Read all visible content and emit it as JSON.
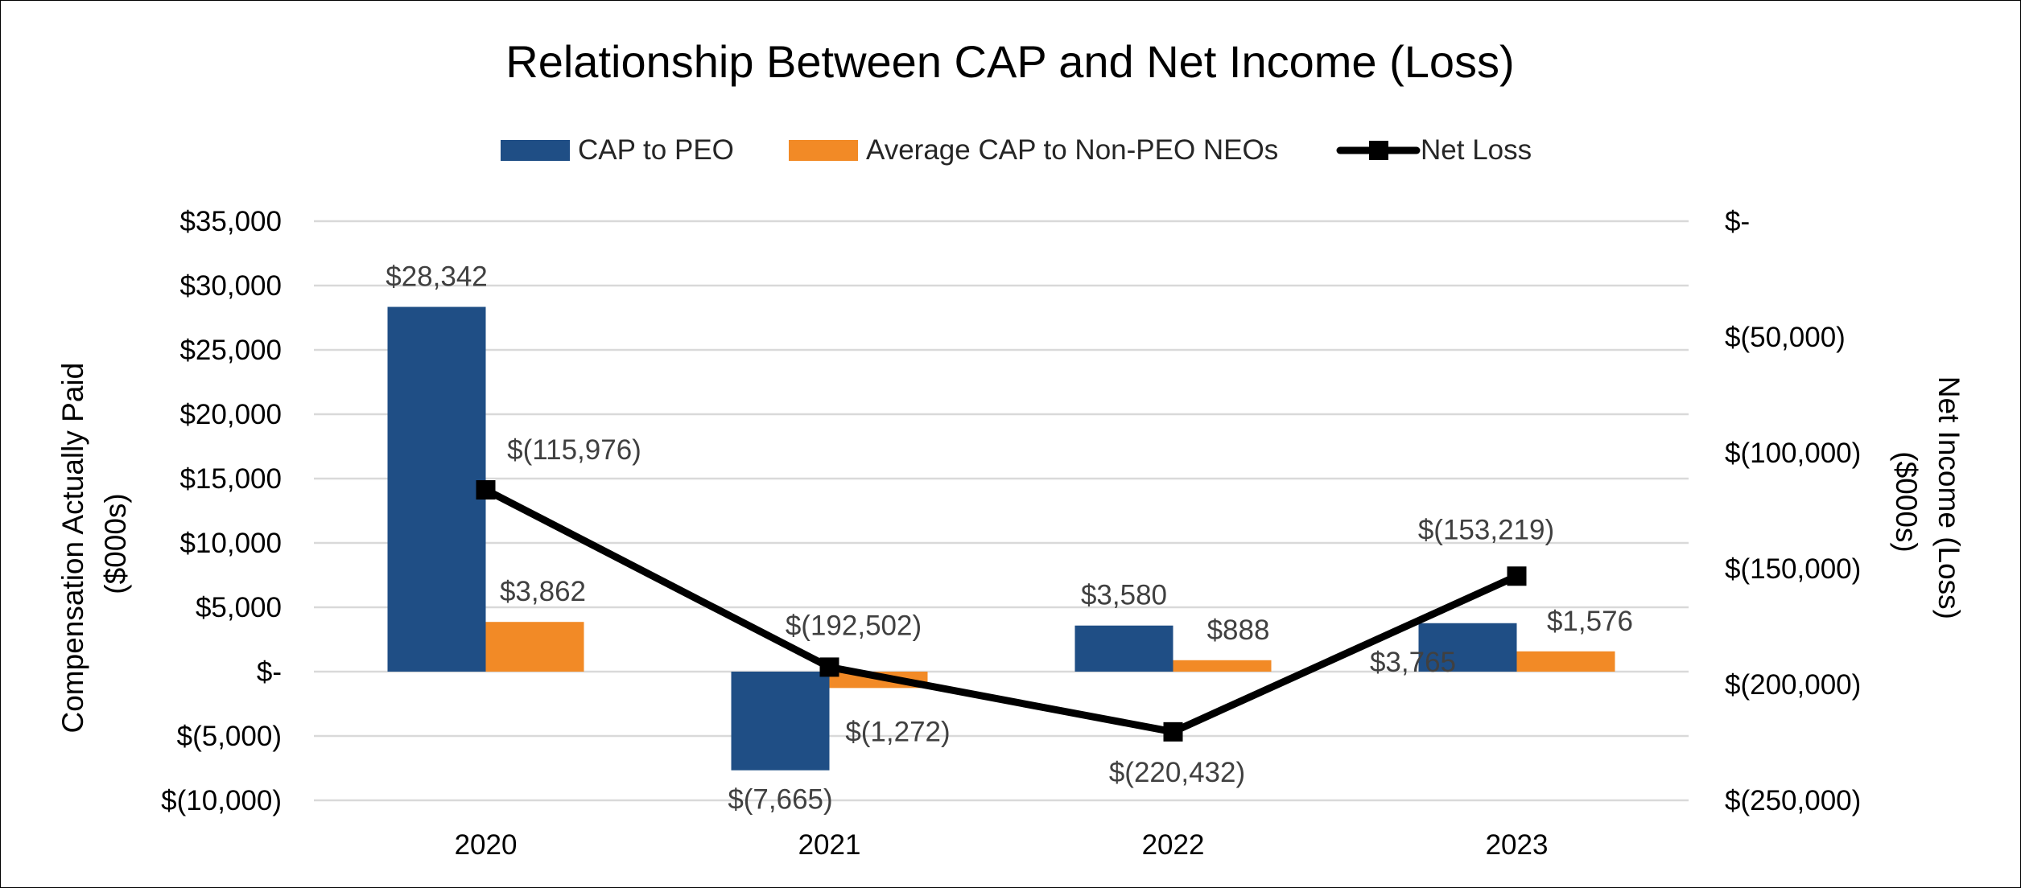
{
  "chart_data": {
    "type": "bar+line",
    "title": "Relationship Between CAP and Net Income (Loss)",
    "categories": [
      "2020",
      "2021",
      "2022",
      "2023"
    ],
    "series": [
      {
        "name": "CAP to PEO",
        "kind": "bar",
        "axis": "left",
        "color": "#1F4E85",
        "values": [
          28342,
          -7665,
          3580,
          3765
        ],
        "labels": [
          "$28,342",
          "$(7,665)",
          "$3,580",
          "$3,765"
        ]
      },
      {
        "name": "Average CAP to Non-PEO NEOs",
        "kind": "bar",
        "axis": "left",
        "color": "#F28A26",
        "values": [
          3862,
          -1272,
          888,
          1576
        ],
        "labels": [
          "$3,862",
          "$(1,272)",
          "$888",
          "$1,576"
        ]
      },
      {
        "name": "Net Loss",
        "kind": "line",
        "axis": "right",
        "color": "#000000",
        "marker": "square",
        "values": [
          -115976,
          -192502,
          -220432,
          -153219
        ],
        "labels": [
          "$(115,976)",
          "$(192,502)",
          "$(220,432)",
          "$(153,219)"
        ]
      }
    ],
    "left_axis": {
      "label": "Compensation Actually Paid ($000s)",
      "label_lines": [
        "Compensation Actually Paid",
        "($000s)"
      ],
      "range": [
        -10000,
        35000
      ],
      "ticks": [
        35000,
        30000,
        25000,
        20000,
        15000,
        10000,
        5000,
        0,
        -5000,
        -10000
      ],
      "tick_labels": [
        "$35,000",
        "$30,000",
        "$25,000",
        "$20,000",
        "$15,000",
        "$10,000",
        "$5,000",
        "$-",
        "$(5,000)",
        "$(10,000)"
      ]
    },
    "right_axis": {
      "label": "Net Income (Loss) ($000s)",
      "label_lines": [
        "Net Income (Loss)",
        "($000s)"
      ],
      "range": [
        -250000,
        0
      ],
      "ticks": [
        0,
        -50000,
        -100000,
        -150000,
        -200000,
        -250000
      ],
      "tick_labels": [
        "$-",
        "$(50,000)",
        "$(100,000)",
        "$(150,000)",
        "$(200,000)",
        "$(250,000)"
      ]
    },
    "grid": true,
    "legend_position": "top-center"
  }
}
